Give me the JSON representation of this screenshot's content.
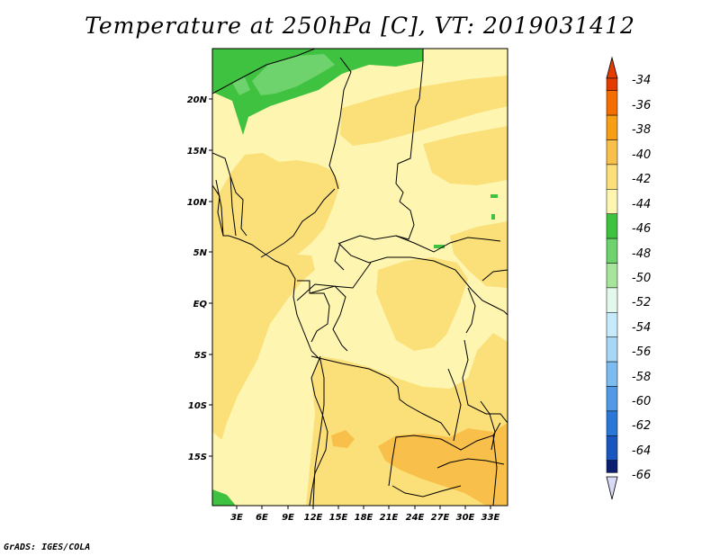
{
  "title": "Temperature at 250hPa [C], VT: 2019031412",
  "credit": "GrADS: IGES/COLA",
  "map": {
    "lat_labels": [
      "20N",
      "15N",
      "10N",
      "5N",
      "EQ",
      "5S",
      "10S",
      "15S"
    ],
    "lon_labels": [
      "3E",
      "6E",
      "9E",
      "12E",
      "15E",
      "18E",
      "21E",
      "24E",
      "27E",
      "30E",
      "33E"
    ]
  },
  "colorbar": {
    "levels": [
      "-34",
      "-36",
      "-38",
      "-40",
      "-42",
      "-44",
      "-46",
      "-48",
      "-50",
      "-52",
      "-54",
      "-56",
      "-58",
      "-60",
      "-62",
      "-64",
      "-66"
    ],
    "colors": {
      "c0": "#e43b00",
      "c1": "#f36d00",
      "c2": "#f89e16",
      "c3": "#f8c04a",
      "c4": "#fbe07a",
      "c5": "#fdf5b0",
      "c6": "#3fc23f",
      "c7": "#6ed36c",
      "c8": "#a8e59c",
      "c9": "#e3f8ec",
      "c10": "#c8ebfb",
      "c11": "#a8d7f6",
      "c12": "#7cbcf0",
      "c13": "#539ae6",
      "c14": "#2a77d8",
      "c15": "#1a56c0",
      "c16": "#0f3596",
      "c17": "#0a1d6e",
      "c18": "#d8daf8"
    }
  }
}
